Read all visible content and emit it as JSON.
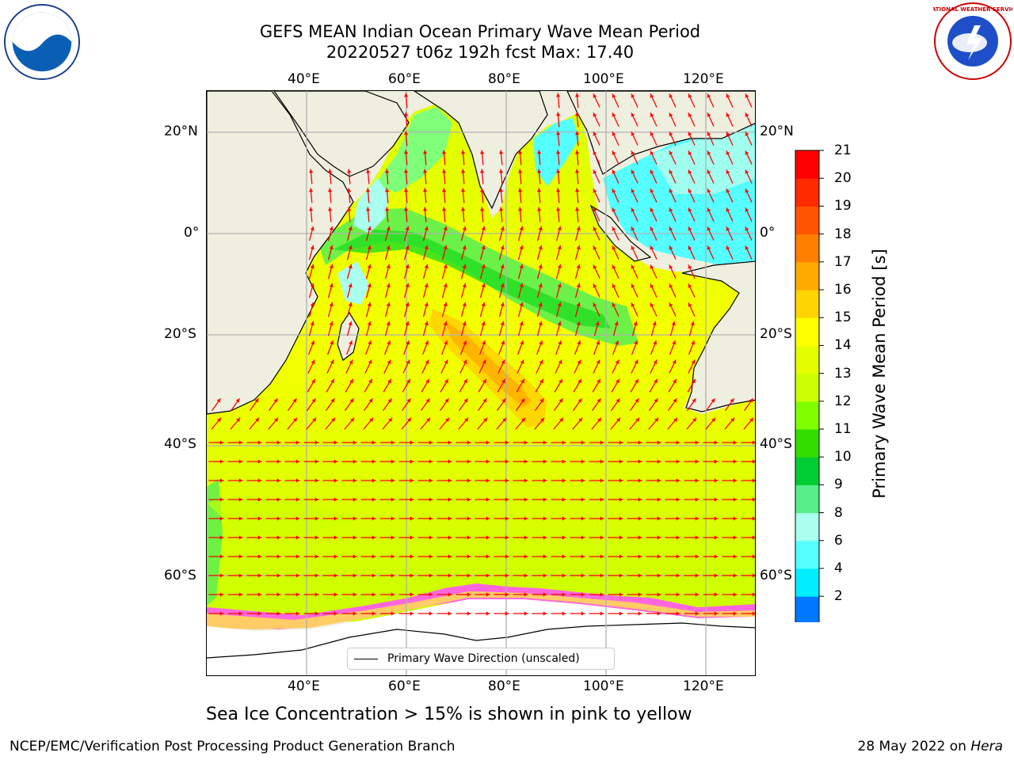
{
  "header": {
    "title_line1": "GEFS MEAN Indian Ocean Primary Wave Mean Period",
    "title_line2": "20220527 t06z 192h fcst   Max: 17.40"
  },
  "logos": {
    "left": "noaa-logo",
    "right": "national-weather-service-logo",
    "left_text": "NOAA",
    "right_text": "NATIONAL WEATHER SERVICE"
  },
  "map": {
    "lon_labels_top": [
      "40°E",
      "60°E",
      "80°E",
      "100°E",
      "120°E"
    ],
    "lon_labels_bottom": [
      "40°E",
      "60°E",
      "80°E",
      "100°E",
      "120°E"
    ],
    "lat_labels_left": [
      "20°N",
      "0°",
      "20°S",
      "40°S",
      "60°S"
    ],
    "lat_labels_right": [
      "20°N",
      "0°",
      "20°S",
      "40°S",
      "60°S"
    ],
    "lon_range": [
      20,
      130
    ],
    "lat_range": [
      -72,
      28
    ],
    "land_color": "#efefe0",
    "arrow_color": "#ff0000"
  },
  "legend": {
    "label": "Primary Wave Direction (unscaled)"
  },
  "colorbar": {
    "label": "Primary Wave Mean Period [s]",
    "ticks": [
      "21",
      "20",
      "19",
      "18",
      "17",
      "16",
      "15",
      "14",
      "13",
      "12",
      "11",
      "10",
      "9",
      "8",
      "6",
      "4",
      "2"
    ],
    "colors": [
      "#ff0000",
      "#ff2a00",
      "#ff5500",
      "#ff7f00",
      "#ffaa00",
      "#ffd400",
      "#ffff00",
      "#e6ff00",
      "#ccff00",
      "#7fff00",
      "#33dd00",
      "#00cc33",
      "#55ee88",
      "#aaffee",
      "#55ffff",
      "#00eeff",
      "#0077ff"
    ],
    "underflow_color": "#0000ff"
  },
  "note": "Sea Ice Concentration > 15% is shown in pink to yellow",
  "footer": {
    "left": "NCEP/EMC/Verification Post Processing Product Generation Branch",
    "right_date": "28 May 2022 on ",
    "right_host": "Hera"
  }
}
